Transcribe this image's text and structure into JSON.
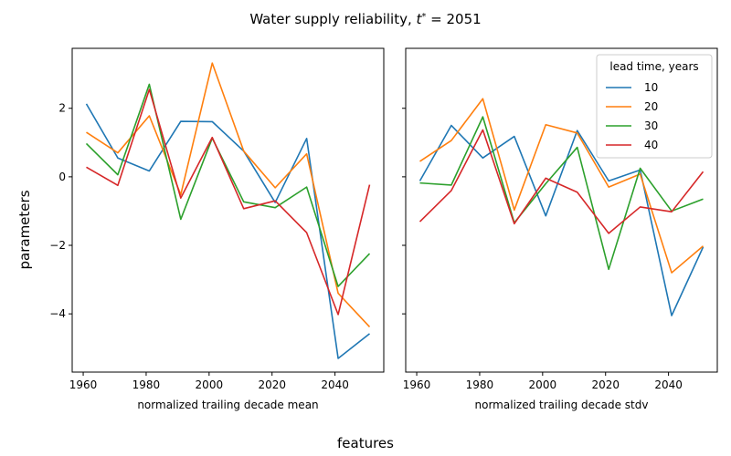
{
  "chart_data": {
    "type": "line",
    "title": "Water supply reliability, t* = 2051",
    "title_prefix": "Water supply reliability, ",
    "title_var": "t",
    "title_sup": "*",
    "title_suffix": " = 2051",
    "ylabel": "parameters",
    "xlabel": "features",
    "ylim": [
      -5.7,
      3.75
    ],
    "xlim": [
      1956.5,
      2055.5
    ],
    "yticks": [
      -4,
      -2,
      0,
      2
    ],
    "xticks": [
      1960,
      1980,
      2000,
      2020,
      2040
    ],
    "legend": {
      "title": "lead time, years",
      "placement": "top-right of right panel"
    },
    "x": [
      1961,
      1971,
      1981,
      1991,
      2001,
      2011,
      2021,
      2031,
      2041,
      2051
    ],
    "panels": [
      {
        "xlabel": "normalized trailing decade mean",
        "series": [
          {
            "name": "10",
            "color": "#1f77b4",
            "values": [
              2.13,
              0.55,
              0.17,
              1.62,
              1.61,
              0.75,
              -0.75,
              1.12,
              -5.3,
              -4.58
            ]
          },
          {
            "name": "20",
            "color": "#ff7f0e",
            "values": [
              1.3,
              0.7,
              1.78,
              -0.52,
              3.32,
              0.75,
              -0.32,
              0.67,
              -3.4,
              -4.38
            ]
          },
          {
            "name": "30",
            "color": "#2ca02c",
            "values": [
              0.97,
              0.06,
              2.7,
              -1.24,
              1.13,
              -0.73,
              -0.9,
              -0.3,
              -3.2,
              -2.24
            ]
          },
          {
            "name": "40",
            "color": "#d62728",
            "values": [
              0.28,
              -0.25,
              2.55,
              -0.62,
              1.15,
              -0.93,
              -0.7,
              -1.63,
              -4.02,
              -0.23
            ]
          }
        ]
      },
      {
        "xlabel": "normalized trailing decade stdv",
        "series": [
          {
            "name": "10",
            "color": "#1f77b4",
            "values": [
              -0.12,
              1.5,
              0.55,
              1.18,
              -1.14,
              1.35,
              -0.12,
              0.2,
              -4.05,
              -2.05
            ]
          },
          {
            "name": "20",
            "color": "#ff7f0e",
            "values": [
              0.45,
              1.06,
              2.28,
              -0.97,
              1.52,
              1.28,
              -0.3,
              0.08,
              -2.8,
              -2.02
            ]
          },
          {
            "name": "30",
            "color": "#2ca02c",
            "values": [
              -0.18,
              -0.24,
              1.75,
              -1.34,
              -0.2,
              0.86,
              -2.7,
              0.25,
              -1.0,
              -0.65
            ]
          },
          {
            "name": "40",
            "color": "#d62728",
            "values": [
              -1.31,
              -0.4,
              1.37,
              -1.37,
              -0.04,
              -0.45,
              -1.65,
              -0.88,
              -1.02,
              0.15
            ]
          }
        ]
      }
    ]
  }
}
